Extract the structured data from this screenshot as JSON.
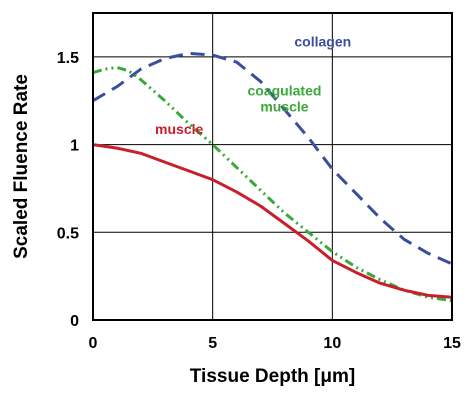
{
  "chart_data": {
    "type": "line",
    "xlabel": "Tissue Depth [μm]",
    "ylabel": "Scaled Fluence Rate",
    "xlim": [
      0,
      15
    ],
    "ylim": [
      0,
      1.75
    ],
    "x_ticks": [
      "0",
      "5",
      "10",
      "15"
    ],
    "y_ticks": [
      "0",
      "0.5",
      "1",
      "1.5"
    ],
    "grid": true,
    "series": [
      {
        "name": "collagen",
        "label_lines": [
          "collagen"
        ],
        "color": "#3a4ea0",
        "dash": "dashed",
        "x": [
          0,
          1,
          2,
          3,
          4,
          5,
          6,
          7,
          8,
          9,
          10,
          11,
          12,
          13,
          14,
          15
        ],
        "y": [
          1.25,
          1.33,
          1.43,
          1.49,
          1.52,
          1.51,
          1.47,
          1.36,
          1.2,
          1.04,
          0.86,
          0.72,
          0.58,
          0.46,
          0.38,
          0.32
        ]
      },
      {
        "name": "coagulated muscle",
        "label_lines": [
          "coagulated",
          "muscle"
        ],
        "color": "#3aa83a",
        "dash": "dashdotdot",
        "x": [
          0,
          0.5,
          1,
          1.5,
          2,
          3,
          4,
          5,
          6,
          7,
          8,
          9,
          10,
          11,
          12,
          13,
          14,
          15
        ],
        "y": [
          1.41,
          1.43,
          1.44,
          1.42,
          1.37,
          1.25,
          1.12,
          1.0,
          0.87,
          0.74,
          0.61,
          0.5,
          0.39,
          0.3,
          0.23,
          0.17,
          0.13,
          0.11
        ]
      },
      {
        "name": "muscle",
        "label_lines": [
          "muscle"
        ],
        "color": "#c8202a",
        "dash": "solid",
        "x": [
          0,
          1,
          2,
          3,
          4,
          5,
          6,
          7,
          8,
          9,
          10,
          11,
          12,
          13,
          14,
          15
        ],
        "y": [
          1.0,
          0.98,
          0.95,
          0.9,
          0.85,
          0.8,
          0.73,
          0.65,
          0.55,
          0.45,
          0.34,
          0.27,
          0.21,
          0.17,
          0.14,
          0.13
        ]
      }
    ]
  }
}
